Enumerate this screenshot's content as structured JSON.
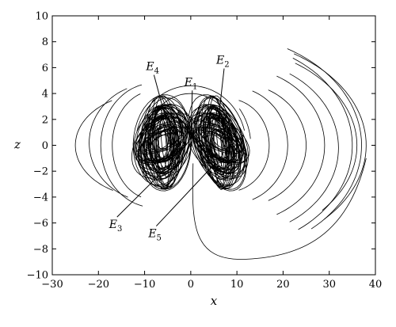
{
  "chart_data": {
    "type": "line",
    "title": "",
    "xlabel": "x",
    "ylabel": "z",
    "xlim": [
      -30,
      40
    ],
    "ylim": [
      -10,
      10
    ],
    "x_ticks": [
      -30,
      -20,
      -10,
      0,
      10,
      20,
      30,
      40
    ],
    "y_ticks": [
      -10,
      -8,
      -6,
      -4,
      -2,
      0,
      2,
      4,
      6,
      8,
      10
    ],
    "grid": false,
    "legend": "none",
    "line_color": "#000000",
    "equilibria": [
      {
        "name": "E",
        "sub": "1",
        "x": 0,
        "z": 0,
        "label_x": -0.7,
        "label_z": 4.6
      },
      {
        "name": "E",
        "sub": "2",
        "x": 6,
        "z": 2,
        "label_x": 6.2,
        "label_z": 6.3
      },
      {
        "name": "E",
        "sub": "3",
        "x": -6,
        "z": -2,
        "label_x": -17,
        "label_z": -6.4
      },
      {
        "name": "E",
        "sub": "4",
        "x": -5,
        "z": 1.5,
        "label_x": -9,
        "label_z": 5.8
      },
      {
        "name": "E",
        "sub": "5",
        "x": 5,
        "z": -1.5,
        "label_x": -8.5,
        "label_z": -7.1
      }
    ]
  }
}
